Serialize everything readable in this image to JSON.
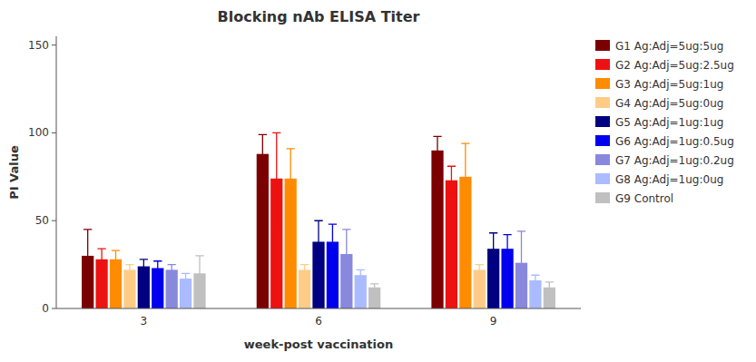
{
  "chart_data": {
    "type": "bar",
    "title": "Blocking nAb ELISA Titer",
    "x_label": "week-post vaccination",
    "y_label": "PI Value",
    "categories": [
      3,
      6,
      9
    ],
    "series": [
      {
        "name": "G1 Ag:Adj=5ug:5ug",
        "color": "#7B0000",
        "values": [
          30,
          88,
          90
        ],
        "errors": [
          15,
          11,
          8
        ]
      },
      {
        "name": "G2 Ag:Adj=5ug:2.5ug",
        "color": "#EE1111",
        "values": [
          28,
          74,
          73
        ],
        "errors": [
          6,
          26,
          8
        ]
      },
      {
        "name": "G3 Ag:Adj=5ug:1ug",
        "color": "#FF8C00",
        "values": [
          28,
          74,
          75
        ],
        "errors": [
          5,
          17,
          19
        ]
      },
      {
        "name": "G4 Ag:Adj=5ug:0ug",
        "color": "#FFCC88",
        "values": [
          22,
          22,
          22
        ],
        "errors": [
          3,
          3,
          3
        ]
      },
      {
        "name": "G5 Ag:Adj=1ug:1ug",
        "color": "#000080",
        "values": [
          24,
          38,
          34
        ],
        "errors": [
          4,
          12,
          9
        ]
      },
      {
        "name": "G6 Ag:Adj=1ug:0.5ug",
        "color": "#0000EE",
        "values": [
          23,
          38,
          34
        ],
        "errors": [
          4,
          10,
          8
        ]
      },
      {
        "name": "G7 Ag:Adj=1ug:0.2ug",
        "color": "#8888DD",
        "values": [
          22,
          31,
          26
        ],
        "errors": [
          3,
          14,
          18
        ]
      },
      {
        "name": "G8 Ag:Adj=1ug:0ug",
        "color": "#AABBFF",
        "values": [
          17,
          19,
          16
        ],
        "errors": [
          3,
          3,
          3
        ]
      },
      {
        "name": "G9 Control",
        "color": "#C0C0C0",
        "values": [
          20,
          12,
          12
        ],
        "errors": [
          10,
          2,
          3
        ]
      }
    ],
    "ylim": [
      0,
      155
    ],
    "yticks": [
      0,
      50,
      100,
      150
    ],
    "grid": false,
    "legend": "right"
  }
}
